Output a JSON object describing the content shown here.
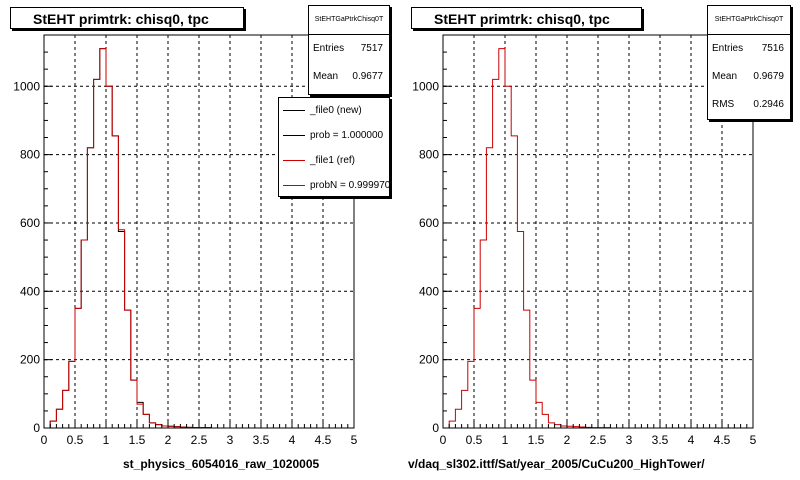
{
  "chart_data": [
    {
      "type": "histogram",
      "title": "StEHT primtrk: chisq0, tpc",
      "xlabel": "st_physics_6054016_raw_1020005",
      "ylabel": "",
      "xlim": [
        0,
        5
      ],
      "ylim": [
        0,
        1150
      ],
      "xticks": [
        0,
        0.5,
        1,
        1.5,
        2,
        2.5,
        3,
        3.5,
        4,
        4.5,
        5
      ],
      "yticks": [
        0,
        200,
        400,
        600,
        800,
        1000
      ],
      "grid": true,
      "bin_width": 0.1,
      "series": [
        {
          "name": "_file0 (new)",
          "color": "#000000",
          "values": [
            0,
            20,
            55,
            110,
            195,
            350,
            550,
            820,
            1020,
            1110,
            1000,
            855,
            575,
            345,
            140,
            75,
            40,
            15,
            10,
            6,
            5,
            4,
            3,
            2,
            1,
            1,
            1,
            0,
            0,
            0,
            0,
            0,
            0,
            0,
            0,
            0,
            0,
            0,
            0,
            0,
            0,
            0,
            0,
            0,
            0,
            0,
            0,
            0,
            0,
            0
          ]
        },
        {
          "name": "_file1 (ref)",
          "color": "#cc0000",
          "values": [
            0,
            20,
            55,
            110,
            195,
            350,
            550,
            820,
            1020,
            1110,
            1000,
            855,
            580,
            345,
            140,
            70,
            40,
            15,
            10,
            6,
            5,
            4,
            3,
            2,
            1,
            1,
            1,
            0,
            0,
            0,
            0,
            0,
            0,
            0,
            0,
            0,
            0,
            0,
            0,
            0,
            0,
            0,
            0,
            0,
            0,
            0,
            0,
            0,
            0,
            0
          ]
        }
      ]
    },
    {
      "type": "histogram",
      "title": "StEHT primtrk: chisq0, tpc",
      "xlabel": "v/daq_sl302.ittf/Sat/year_2005/CuCu200_HighTower/",
      "ylabel": "",
      "xlim": [
        0,
        5
      ],
      "ylim": [
        0,
        1150
      ],
      "xticks": [
        0,
        0.5,
        1,
        1.5,
        2,
        2.5,
        3,
        3.5,
        4,
        4.5,
        5
      ],
      "yticks": [
        0,
        200,
        400,
        600,
        800,
        1000
      ],
      "grid": true,
      "bin_width": 0.1,
      "series": [
        {
          "name": "",
          "color": "#cc0000",
          "values": [
            0,
            20,
            55,
            110,
            195,
            350,
            550,
            820,
            1020,
            1110,
            1000,
            855,
            575,
            345,
            140,
            75,
            40,
            15,
            10,
            6,
            5,
            4,
            3,
            2,
            1,
            1,
            1,
            0,
            0,
            0,
            0,
            0,
            0,
            0,
            0,
            0,
            0,
            0,
            0,
            0,
            0,
            0,
            0,
            0,
            0,
            0,
            0,
            0,
            0,
            0
          ]
        }
      ]
    }
  ],
  "panels": [
    {
      "title": "StEHT primtrk: chisq0, tpc",
      "stats": {
        "name": "StEHTGaPtrkChisq0T",
        "entries_label": "Entries",
        "entries": "7517",
        "mean_label": "Mean",
        "mean": "0.9677"
      },
      "legend": [
        {
          "label": "_file0 (new)",
          "color": "#000000"
        },
        {
          "label": "prob = 1.000000",
          "color": "#000000"
        },
        {
          "label": "_file1 (ref)",
          "color": "#cc0000"
        },
        {
          "label": "probN = 0.999970",
          "color": "#cc0000"
        }
      ],
      "xlabel": "st_physics_6054016_raw_1020005"
    },
    {
      "title": "StEHT primtrk: chisq0, tpc",
      "stats": {
        "name": "StEHTGaPtrkChisq0T",
        "entries_label": "Entries",
        "entries": "7516",
        "mean_label": "Mean",
        "mean": "0.9679",
        "rms_label": "RMS",
        "rms": "0.2946"
      },
      "xlabel": "v/daq_sl302.ittf/Sat/year_2005/CuCu200_HighTower/"
    }
  ]
}
